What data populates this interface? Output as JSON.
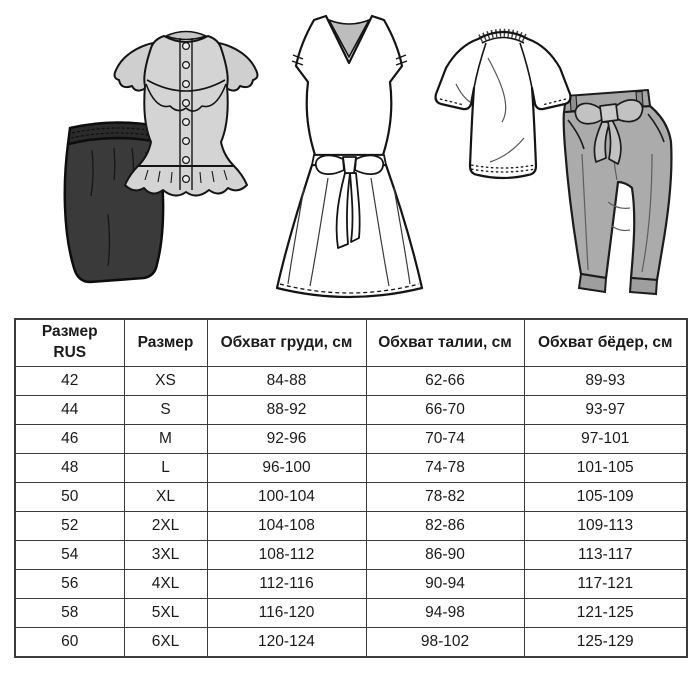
{
  "page": {
    "background_color": "#ffffff",
    "text_color": "#1a1a1a",
    "table_border_color": "#3b3b3b"
  },
  "illustrations": {
    "outline_color": "#141414",
    "items": [
      {
        "name": "skirt-icon",
        "label": "dark pencil skirt with elastic waistband",
        "fill": "#3a3a3a"
      },
      {
        "name": "blouse-icon",
        "label": "light gray sleeveless blouse with ruffles and buttons",
        "fill": "#d4d4d4"
      },
      {
        "name": "dress-icon",
        "label": "white v-neck midi dress with waist tie bow",
        "fill": "#ffffff"
      },
      {
        "name": "tshirt-icon",
        "label": "white raglan t-shirt with ribbed collar",
        "fill": "#ffffff"
      },
      {
        "name": "pants-icon",
        "label": "gray tapered trousers with bow belt and cuffs",
        "fill": "#ababab"
      }
    ]
  },
  "size_table": {
    "headers": [
      "Размер\nRUS",
      "Размер",
      "Обхват груди, см",
      "Обхват талии, см",
      "Обхват бёдер, см"
    ],
    "rows": [
      [
        "42",
        "XS",
        "84-88",
        "62-66",
        "89-93"
      ],
      [
        "44",
        "S",
        "88-92",
        "66-70",
        "93-97"
      ],
      [
        "46",
        "M",
        "92-96",
        "70-74",
        "97-101"
      ],
      [
        "48",
        "L",
        "96-100",
        "74-78",
        "101-105"
      ],
      [
        "50",
        "XL",
        "100-104",
        "78-82",
        "105-109"
      ],
      [
        "52",
        "2XL",
        "104-108",
        "82-86",
        "109-113"
      ],
      [
        "54",
        "3XL",
        "108-112",
        "86-90",
        "113-117"
      ],
      [
        "56",
        "4XL",
        "112-116",
        "90-94",
        "117-121"
      ],
      [
        "58",
        "5XL",
        "116-120",
        "94-98",
        "121-125"
      ],
      [
        "60",
        "6XL",
        "120-124",
        "98-102",
        "125-129"
      ]
    ]
  },
  "chart_data": {
    "type": "table",
    "columns": [
      "Размер RUS",
      "Размер",
      "Обхват груди, см",
      "Обхват талии, см",
      "Обхват бёдер, см"
    ],
    "rows": [
      [
        "42",
        "XS",
        "84-88",
        "62-66",
        "89-93"
      ],
      [
        "44",
        "S",
        "88-92",
        "66-70",
        "93-97"
      ],
      [
        "46",
        "M",
        "92-96",
        "70-74",
        "97-101"
      ],
      [
        "48",
        "L",
        "96-100",
        "74-78",
        "101-105"
      ],
      [
        "50",
        "XL",
        "100-104",
        "78-82",
        "105-109"
      ],
      [
        "52",
        "2XL",
        "104-108",
        "82-86",
        "109-113"
      ],
      [
        "54",
        "3XL",
        "108-112",
        "86-90",
        "113-117"
      ],
      [
        "56",
        "4XL",
        "112-116",
        "90-94",
        "117-121"
      ],
      [
        "58",
        "5XL",
        "116-120",
        "94-98",
        "121-125"
      ],
      [
        "60",
        "6XL",
        "120-124",
        "98-102",
        "125-129"
      ]
    ]
  }
}
